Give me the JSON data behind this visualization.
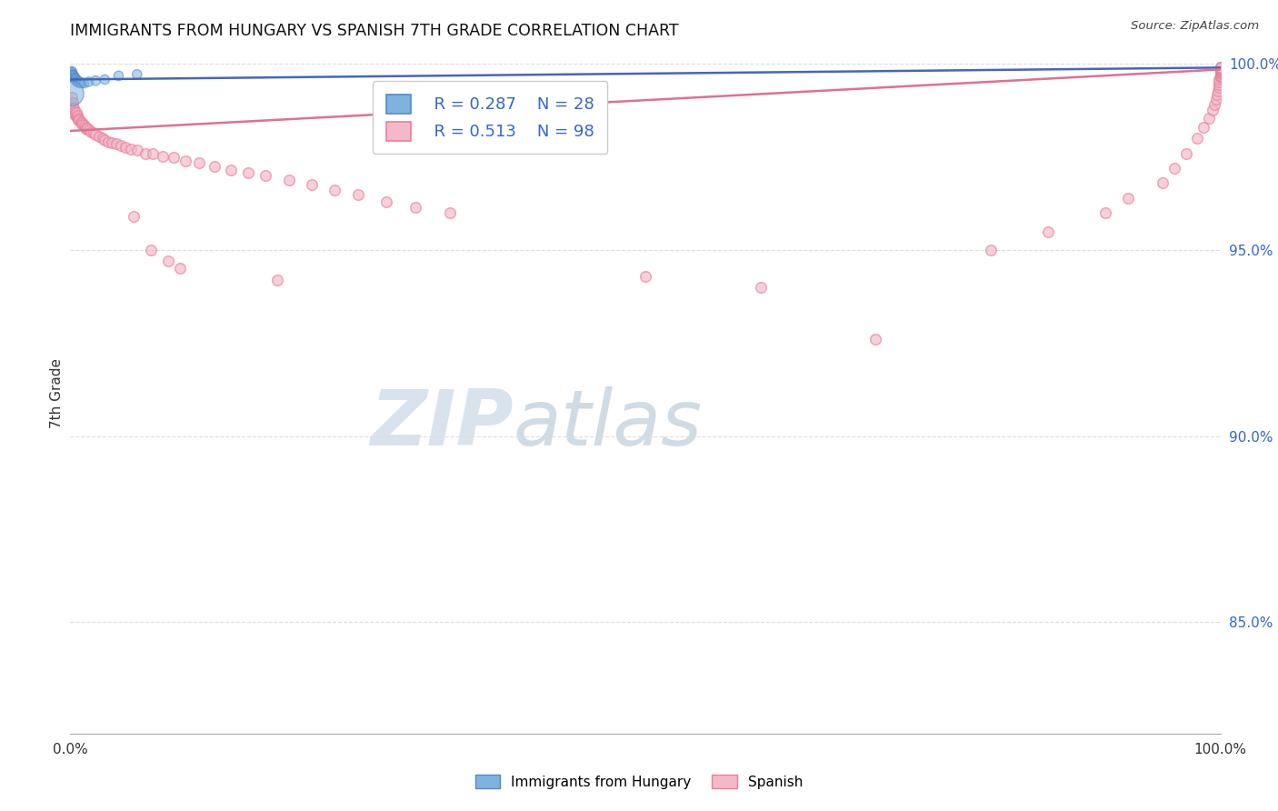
{
  "title": "IMMIGRANTS FROM HUNGARY VS SPANISH 7TH GRADE CORRELATION CHART",
  "source": "Source: ZipAtlas.com",
  "ylabel": "7th Grade",
  "blue_color": "#7EB3E0",
  "pink_color": "#F5B8C8",
  "blue_edge_color": "#5588CC",
  "pink_edge_color": "#E8809A",
  "blue_line_color": "#4466BB",
  "pink_line_color": "#E07090",
  "legend_text_color": "#3366CC",
  "background_color": "#FFFFFF",
  "grid_color": "#DDDDDD",
  "xlim": [
    0.0,
    1.0
  ],
  "ylim": [
    0.82,
    1.003
  ],
  "yticks": [
    0.85,
    0.9,
    0.95,
    1.0
  ],
  "ytick_labels": [
    "85.0%",
    "90.0%",
    "95.0%",
    "100.0%"
  ],
  "legend_r1": "R = 0.287",
  "legend_n1": "N = 28",
  "legend_r2": "R = 0.513",
  "legend_n2": "N = 98",
  "hungary_x": [
    0.0008,
    0.0012,
    0.0015,
    0.002,
    0.002,
    0.0025,
    0.003,
    0.003,
    0.0035,
    0.004,
    0.004,
    0.0045,
    0.005,
    0.005,
    0.006,
    0.006,
    0.007,
    0.007,
    0.008,
    0.009,
    0.01,
    0.012,
    0.016,
    0.022,
    0.03,
    0.042,
    0.058,
    0.001
  ],
  "hungary_y": [
    0.9975,
    0.998,
    0.9978,
    0.9972,
    0.9968,
    0.997,
    0.9965,
    0.9968,
    0.9962,
    0.996,
    0.9963,
    0.9958,
    0.9955,
    0.996,
    0.9955,
    0.9952,
    0.995,
    0.9952,
    0.9952,
    0.9948,
    0.995,
    0.9948,
    0.9952,
    0.9955,
    0.9958,
    0.9968,
    0.9972,
    0.992
  ],
  "hungary_sizes": [
    55,
    55,
    55,
    55,
    55,
    55,
    55,
    55,
    55,
    55,
    55,
    55,
    55,
    55,
    55,
    55,
    55,
    55,
    55,
    55,
    55,
    55,
    55,
    55,
    55,
    55,
    55,
    380
  ],
  "spanish_x": [
    0.001,
    0.001,
    0.002,
    0.002,
    0.003,
    0.003,
    0.003,
    0.004,
    0.004,
    0.005,
    0.005,
    0.006,
    0.006,
    0.007,
    0.007,
    0.008,
    0.009,
    0.01,
    0.01,
    0.011,
    0.012,
    0.013,
    0.014,
    0.015,
    0.016,
    0.018,
    0.02,
    0.022,
    0.025,
    0.028,
    0.03,
    0.033,
    0.036,
    0.04,
    0.044,
    0.048,
    0.053,
    0.058,
    0.065,
    0.072,
    0.08,
    0.09,
    0.1,
    0.112,
    0.125,
    0.14,
    0.155,
    0.17,
    0.19,
    0.21,
    0.23,
    0.25,
    0.275,
    0.3,
    0.33,
    0.055,
    0.07,
    0.085,
    0.095,
    0.18,
    0.5,
    0.6,
    0.7,
    0.8,
    0.85,
    0.9,
    0.92,
    0.95,
    0.96,
    0.97,
    0.98,
    0.985,
    0.99,
    0.993,
    0.995,
    0.996,
    0.997,
    0.998,
    0.999,
    0.999,
    0.999,
    0.999,
    1.0,
    1.0,
    1.0,
    1.0,
    1.0,
    1.0,
    1.0,
    1.0,
    1.0,
    1.0,
    1.0,
    1.0,
    1.0,
    1.0,
    1.0,
    1.0
  ],
  "spanish_y": [
    0.9888,
    0.991,
    0.9895,
    0.988,
    0.9878,
    0.987,
    0.9882,
    0.9872,
    0.9865,
    0.986,
    0.9868,
    0.9858,
    0.9862,
    0.9855,
    0.985,
    0.9848,
    0.9845,
    0.984,
    0.9843,
    0.9838,
    0.9835,
    0.983,
    0.9825,
    0.9828,
    0.9822,
    0.9818,
    0.9815,
    0.981,
    0.9805,
    0.98,
    0.9795,
    0.979,
    0.9788,
    0.9785,
    0.978,
    0.9775,
    0.977,
    0.9768,
    0.976,
    0.9758,
    0.9752,
    0.9748,
    0.974,
    0.9735,
    0.9725,
    0.9715,
    0.9708,
    0.97,
    0.9688,
    0.9675,
    0.9662,
    0.9648,
    0.963,
    0.9615,
    0.96,
    0.959,
    0.95,
    0.947,
    0.945,
    0.942,
    0.943,
    0.94,
    0.926,
    0.95,
    0.955,
    0.96,
    0.964,
    0.968,
    0.972,
    0.976,
    0.98,
    0.983,
    0.9855,
    0.9875,
    0.989,
    0.9905,
    0.9918,
    0.9928,
    0.9938,
    0.9945,
    0.9952,
    0.9958,
    0.9963,
    0.9967,
    0.997,
    0.9973,
    0.9975,
    0.9978,
    0.998,
    0.9982,
    0.9984,
    0.9986,
    0.9987,
    0.9988,
    0.9989,
    0.999,
    0.999,
    0.9991
  ],
  "blue_trendline_x": [
    0.0,
    1.0
  ],
  "blue_trendline_y": [
    0.9958,
    0.999
  ],
  "pink_trendline_x": [
    0.0,
    1.0
  ],
  "pink_trendline_y": [
    0.982,
    0.9985
  ]
}
